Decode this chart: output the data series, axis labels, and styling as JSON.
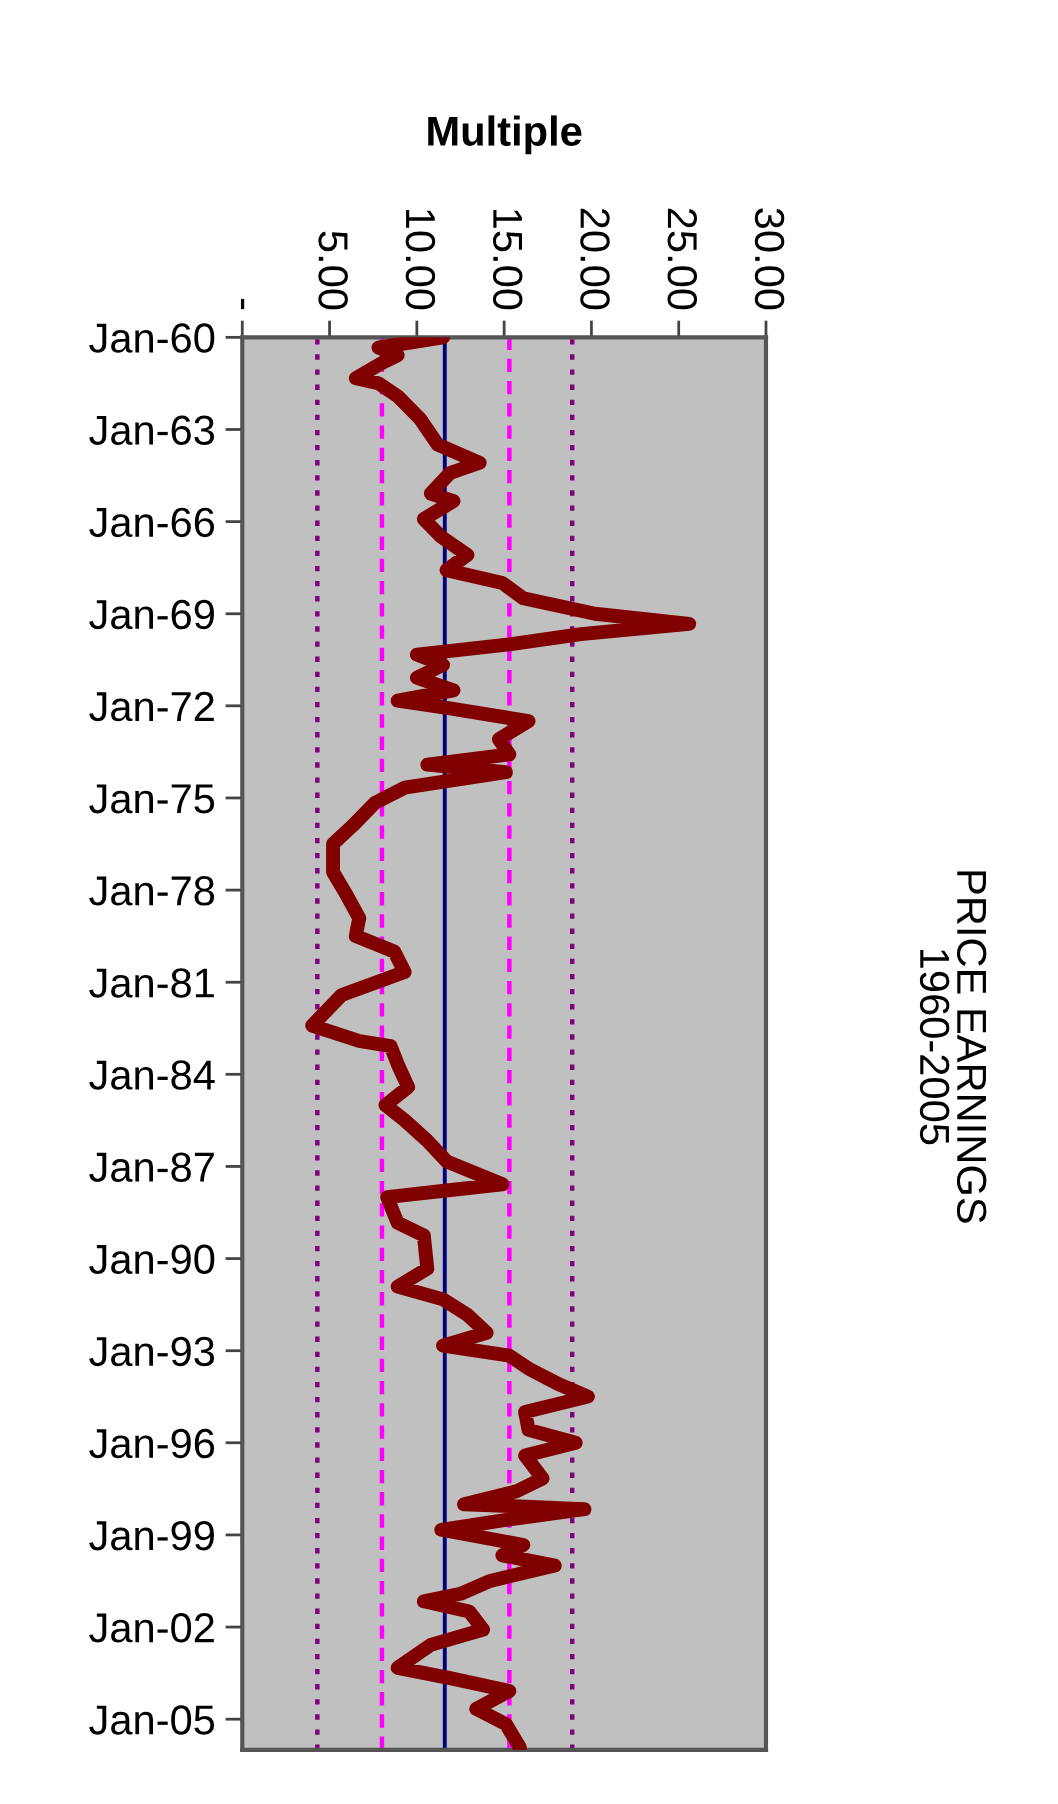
{
  "chart_data": {
    "type": "line",
    "orientation": "horizontal",
    "title": "PRICE EARNINGS",
    "subtitle": "1960-2005",
    "xlabel": "Multiple",
    "x": [
      "1960-01",
      "1960-05",
      "1960-08",
      "1960-11",
      "1961-05",
      "1961-07",
      "1961-12",
      "1962-09",
      "1963-07",
      "1964-02",
      "1964-06",
      "1965-02",
      "1965-05",
      "1965-12",
      "1966-07",
      "1967-02",
      "1967-08",
      "1968-01",
      "1968-07",
      "1969-01",
      "1969-05",
      "1969-09",
      "1970-01",
      "1970-05",
      "1970-09",
      "1971-02",
      "1971-07",
      "1971-11",
      "1972-02",
      "1972-07",
      "1973-02",
      "1973-08",
      "1973-12",
      "1974-03",
      "1974-09",
      "1975-03",
      "1975-12",
      "1976-07",
      "1977-06",
      "1978-02",
      "1978-12",
      "1979-07",
      "1980-01",
      "1980-09",
      "1981-06",
      "1982-06",
      "1982-12",
      "1983-02",
      "1983-09",
      "1984-06",
      "1985-01",
      "1985-07",
      "1986-03",
      "1986-11",
      "1987-08",
      "1988-01",
      "1988-11",
      "1989-04",
      "1990-05",
      "1990-12",
      "1991-05",
      "1991-11",
      "1992-06",
      "1992-11",
      "1993-03",
      "1993-08",
      "1994-02",
      "1994-07",
      "1995-01",
      "1995-08",
      "1996-01",
      "1996-06",
      "1997-03",
      "1997-08",
      "1998-01",
      "1998-03",
      "1998-07",
      "1998-11",
      "1999-05",
      "1999-09",
      "2000-01",
      "2000-07",
      "2000-12",
      "2001-03",
      "2001-07",
      "2002-02",
      "2002-08",
      "2003-05",
      "2003-09",
      "2004-02",
      "2004-09",
      "2005-03",
      "2005-12"
    ],
    "series": [
      {
        "color": "#800000",
        "values": [
          11.5,
          7.8,
          8.9,
          8.0,
          6.5,
          7.8,
          8.9,
          10.2,
          11.2,
          13.6,
          11.9,
          10.8,
          12.1,
          10.4,
          11.4,
          12.9,
          11.7,
          14.9,
          16.1,
          20.2,
          25.6,
          19.4,
          15.3,
          10.0,
          11.5,
          10.0,
          12.1,
          8.9,
          11.9,
          16.4,
          14.7,
          15.3,
          10.6,
          15.1,
          9.3,
          7.6,
          6.3,
          5.2,
          5.2,
          5.9,
          6.7,
          6.5,
          8.7,
          9.3,
          5.7,
          4.0,
          6.7,
          8.5,
          8.9,
          9.5,
          8.2,
          9.3,
          10.6,
          11.7,
          14.9,
          8.3,
          8.9,
          10.4,
          10.6,
          8.9,
          11.5,
          12.9,
          14.0,
          11.5,
          15.3,
          16.4,
          18.1,
          19.8,
          16.2,
          16.4,
          19.1,
          16.2,
          17.2,
          15.7,
          12.7,
          19.6,
          15.3,
          11.4,
          16.1,
          14.9,
          17.9,
          14.2,
          12.5,
          10.4,
          13.0,
          13.8,
          10.8,
          8.9,
          11.9,
          15.3,
          13.4,
          15.1,
          15.9
        ]
      }
    ],
    "ylim": [
      "2006-01",
      "1960-01"
    ],
    "yticks": [
      {
        "value": "1960-01",
        "label": "Jan-60"
      },
      {
        "value": "1963-01",
        "label": "Jan-63"
      },
      {
        "value": "1966-01",
        "label": "Jan-66"
      },
      {
        "value": "1969-01",
        "label": "Jan-69"
      },
      {
        "value": "1972-01",
        "label": "Jan-72"
      },
      {
        "value": "1975-01",
        "label": "Jan-75"
      },
      {
        "value": "1978-01",
        "label": "Jan-78"
      },
      {
        "value": "1981-01",
        "label": "Jan-81"
      },
      {
        "value": "1984-01",
        "label": "Jan-84"
      },
      {
        "value": "1987-01",
        "label": "Jan-87"
      },
      {
        "value": "1990-01",
        "label": "Jan-90"
      },
      {
        "value": "1993-01",
        "label": "Jan-93"
      },
      {
        "value": "1996-01",
        "label": "Jan-96"
      },
      {
        "value": "1999-01",
        "label": "Jan-99"
      },
      {
        "value": "2002-01",
        "label": "Jan-02"
      },
      {
        "value": "2005-01",
        "label": "Jan-05"
      }
    ],
    "xlim": [
      0,
      30
    ],
    "xticks": [
      {
        "value": 0,
        "label": "-"
      },
      {
        "value": 5,
        "label": "5.00"
      },
      {
        "value": 10,
        "label": "10.00"
      },
      {
        "value": 15,
        "label": "15.00"
      },
      {
        "value": 20,
        "label": "20.00"
      },
      {
        "value": 25,
        "label": "25.00"
      },
      {
        "value": 30,
        "label": "30.00"
      }
    ],
    "ref_lines": [
      {
        "axis": "x",
        "value": 4.3,
        "color": "#800080",
        "line_style": "dotted"
      },
      {
        "axis": "x",
        "value": 8.0,
        "color": "#ff00ff",
        "line_style": "dashed"
      },
      {
        "axis": "x",
        "value": 11.6,
        "color": "#000080",
        "line_style": "solid"
      },
      {
        "axis": "x",
        "value": 15.3,
        "color": "#ff00ff",
        "line_style": "dashed"
      },
      {
        "axis": "x",
        "value": 18.9,
        "color": "#800080",
        "line_style": "dotted"
      }
    ],
    "grid": false,
    "marker": "none",
    "line_style": "solid"
  }
}
